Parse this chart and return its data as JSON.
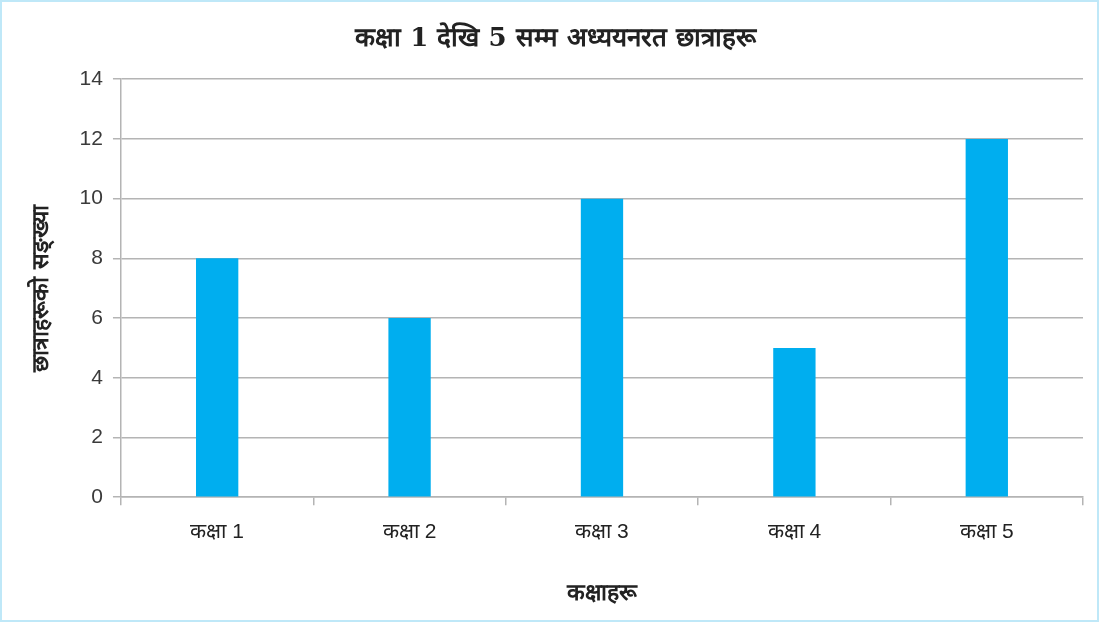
{
  "chart_data": {
    "type": "bar",
    "title": "कक्षा 1 देखि 5 सम्म अध्ययनरत छात्राहरू",
    "xlabel": "कक्षाहरू",
    "ylabel": "छात्राहरूको सङ्ख्या",
    "categories": [
      "कक्षा 1",
      "कक्षा 2",
      "कक्षा 3",
      "कक्षा 4",
      "कक्षा 5"
    ],
    "values": [
      8,
      6,
      10,
      5,
      12
    ],
    "color": "#00aeef",
    "ylim": [
      0,
      14
    ],
    "yticks": [
      0,
      2,
      4,
      6,
      8,
      10,
      12,
      14
    ],
    "grid": "y",
    "legend": false
  }
}
